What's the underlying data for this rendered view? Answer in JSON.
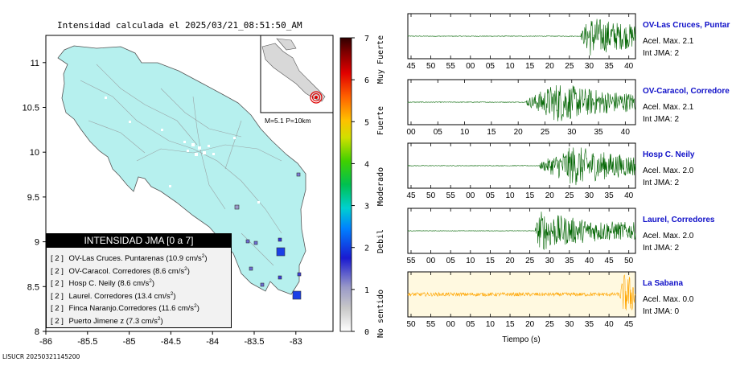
{
  "map": {
    "title": "Intensidad calculada el 2025/03/21_08:51:50_AM",
    "lon_ticks": [
      "-86",
      "-85.5",
      "-85",
      "-84.5",
      "-84",
      "-83.5",
      "-83"
    ],
    "lat_ticks": [
      "8",
      "8.5",
      "9",
      "9.5",
      "10",
      "10.5",
      "11"
    ],
    "magnitude_label": "M=5.1 P=10km",
    "footer_id": "LISUCR 20250321145200",
    "colorbar": {
      "ticks": [
        "0",
        "1",
        "2",
        "3",
        "4",
        "5",
        "6",
        "7"
      ],
      "categories": [
        "No sentido",
        "Debil",
        "Moderado",
        "Fuerte",
        "Muy Fuerte"
      ]
    },
    "legend": {
      "title": "INTENSIDAD JMA [0 a 7]",
      "rows": [
        {
          "level": "[ 2 ]",
          "text": "OV-Las Cruces. Puntarenas (10.9 cm/s",
          "sup": "2",
          "end": ")"
        },
        {
          "level": "[ 2 ]",
          "text": "OV-Caracol. Corredores (8.6 cm/s",
          "sup": "2",
          "end": ")"
        },
        {
          "level": "[ 2 ]",
          "text": "Hosp C. Neily (8.6 cm/s",
          "sup": "2",
          "end": ")"
        },
        {
          "level": "[ 2 ]",
          "text": "Laurel. Corredores (13.4 cm/s",
          "sup": "2",
          "end": ")"
        },
        {
          "level": "[ 2 ]",
          "text": "Finca Naranjo.Corredores (11.6 cm/s",
          "sup": "2",
          "end": ")"
        },
        {
          "level": "[ 2 ]",
          "text": "Puerto Jimene z (7.3 cm/s",
          "sup": "2",
          "end": ")"
        }
      ]
    }
  },
  "chart_data": {
    "type": "line",
    "xlabel": "Tiempo (s)",
    "panels": [
      {
        "station": "OV-Las Cruces, Puntar",
        "acel": "Acel. Max. 2.1",
        "int": "Int JMA: 2",
        "x_ticks": [
          "45",
          "50",
          "55",
          "00",
          "05",
          "10",
          "15",
          "20",
          "25",
          "30",
          "35",
          "40"
        ],
        "color": "#006400",
        "bg": "#ffffff",
        "onset": 0.76,
        "peak_at": 0.8,
        "noise": 0.03
      },
      {
        "station": "OV-Caracol, Corredore",
        "acel": "Acel. Max. 2.1",
        "int": "Int JMA: 2",
        "x_ticks": [
          "00",
          "05",
          "10",
          "15",
          "20",
          "25",
          "30",
          "35",
          "40"
        ],
        "color": "#006400",
        "bg": "#ffffff",
        "onset": 0.52,
        "peak_at": 0.66,
        "noise": 0.03
      },
      {
        "station": "Hosp C. Neily",
        "acel": "Acel. Max. 2.0",
        "int": "Int JMA: 2",
        "x_ticks": [
          "45",
          "50",
          "55",
          "00",
          "05",
          "10",
          "15",
          "20",
          "25",
          "30",
          "35",
          "40"
        ],
        "color": "#006400",
        "bg": "#ffffff",
        "onset": 0.58,
        "peak_at": 0.73,
        "noise": 0.03
      },
      {
        "station": "Laurel, Corredores",
        "acel": "Acel. Max. 2.0",
        "int": "Int JMA: 2",
        "x_ticks": [
          "55",
          "00",
          "05",
          "10",
          "15",
          "20",
          "25",
          "30",
          "35",
          "40",
          "45",
          "50"
        ],
        "color": "#006400",
        "bg": "#ffffff",
        "onset": 0.56,
        "peak_at": 0.58,
        "noise": 0.02
      },
      {
        "station": "La Sabana",
        "acel": "Acel. Max. 0.0",
        "int": "Int JMA: 0",
        "x_ticks": [
          "50",
          "55",
          "00",
          "05",
          "10",
          "15",
          "20",
          "25",
          "30",
          "35",
          "40",
          "45"
        ],
        "color": "#ffa500",
        "bg": "#fff9e0",
        "onset": 0.93,
        "peak_at": 0.95,
        "noise": 0.18
      }
    ]
  }
}
